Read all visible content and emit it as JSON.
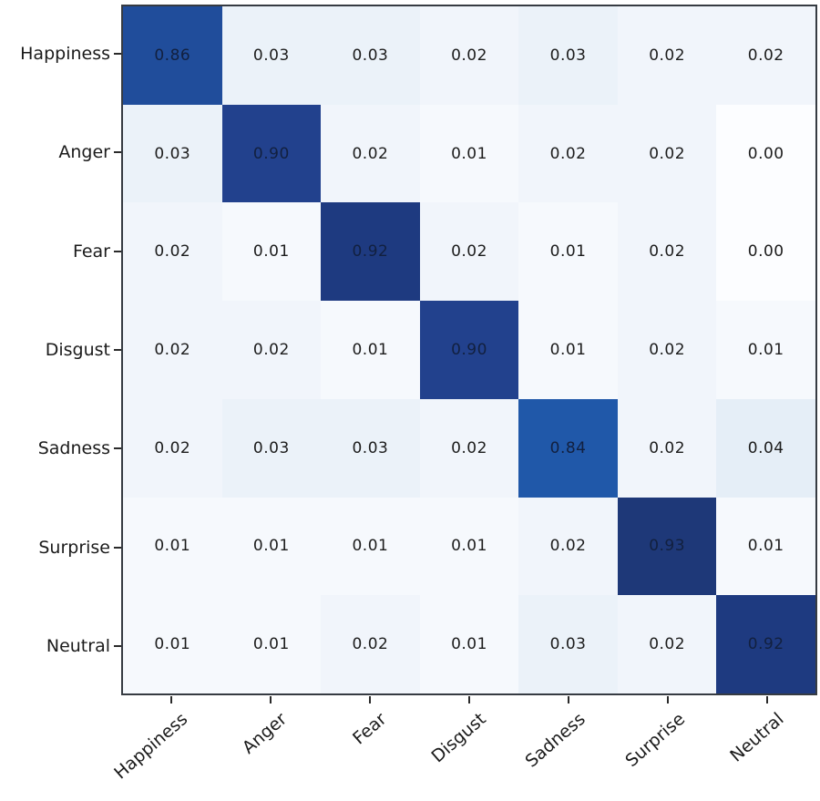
{
  "figure": {
    "kind": "confusion-matrix",
    "title": ""
  },
  "chart_data": {
    "type": "heatmap",
    "title": "",
    "xlabel": "",
    "ylabel": "",
    "x_labels": [
      "Happiness",
      "Anger",
      "Fear",
      "Disgust",
      "Sadness",
      "Surprise",
      "Neutral"
    ],
    "y_labels": [
      "Happiness",
      "Anger",
      "Fear",
      "Disgust",
      "Sadness",
      "Surprise",
      "Neutral"
    ],
    "matrix": [
      [
        0.86,
        0.03,
        0.03,
        0.02,
        0.03,
        0.02,
        0.02
      ],
      [
        0.03,
        0.9,
        0.02,
        0.01,
        0.02,
        0.02,
        0.0
      ],
      [
        0.02,
        0.01,
        0.92,
        0.02,
        0.01,
        0.02,
        0.0
      ],
      [
        0.02,
        0.02,
        0.01,
        0.9,
        0.01,
        0.02,
        0.01
      ],
      [
        0.02,
        0.03,
        0.03,
        0.02,
        0.84,
        0.02,
        0.04
      ],
      [
        0.01,
        0.01,
        0.01,
        0.01,
        0.02,
        0.93,
        0.01
      ],
      [
        0.01,
        0.01,
        0.02,
        0.01,
        0.03,
        0.02,
        0.92
      ]
    ],
    "annotation_format": ".2f",
    "value_range": [
      0,
      1
    ],
    "colormap_name": "Blues",
    "legend": "none",
    "grid": false,
    "x_label_rotation_deg": 45
  },
  "colors": {
    "figure_background": "#ffffff",
    "plot_border": "#363b42",
    "tick": "#2a2a2a",
    "axis_label_text": "#1b1b1b",
    "cell_text": "#1c1c1c",
    "cell_text_on_dark": "#12203f",
    "scale": {
      "0.00": "#fcfdff",
      "0.01": "#f6f9fd",
      "0.02": "#f1f5fb",
      "0.03": "#ebf2f9",
      "0.04": "#e5eef7",
      "0.84": "#2058a9",
      "0.86": "#204d9b",
      "0.90": "#22418d",
      "0.92": "#1e3a80",
      "0.93": "#1e3878"
    }
  }
}
